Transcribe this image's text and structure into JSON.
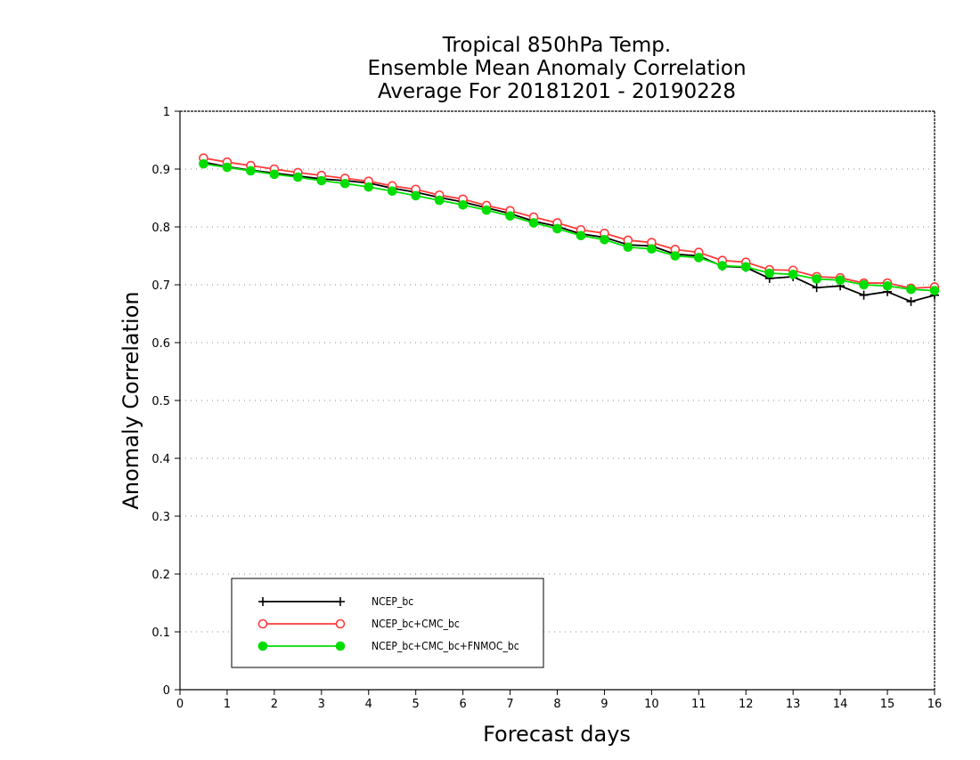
{
  "chart_data": {
    "type": "line",
    "title": [
      "Tropical 850hPa Temp.",
      "Ensemble Mean Anomaly Correlation",
      "Average For 20181201 - 20190228"
    ],
    "xlabel": "Forecast days",
    "ylabel": "Anomaly Correlation",
    "xlim": [
      0,
      16
    ],
    "ylim": [
      0,
      1
    ],
    "xticks": [
      0,
      1,
      2,
      3,
      4,
      5,
      6,
      7,
      8,
      9,
      10,
      11,
      12,
      13,
      14,
      15,
      16
    ],
    "yticks": [
      0,
      0.1,
      0.2,
      0.3,
      0.4,
      0.5,
      0.6,
      0.7,
      0.8,
      0.9,
      1
    ],
    "xtick_labels": [
      "0",
      "1",
      "2",
      "3",
      "4",
      "5",
      "6",
      "7",
      "8",
      "9",
      "10",
      "11",
      "12",
      "13",
      "14",
      "15",
      "16"
    ],
    "ytick_labels": [
      "0",
      "0.1",
      "0.2",
      "0.3",
      "0.4",
      "0.5",
      "0.6",
      "0.7",
      "0.8",
      "0.9",
      "1"
    ],
    "grid": "horizontal-dotted",
    "legend_position": "bottom-left",
    "x": [
      0.5,
      1,
      1.5,
      2,
      2.5,
      3,
      3.5,
      4,
      4.5,
      5,
      5.5,
      6,
      6.5,
      7,
      7.5,
      8,
      8.5,
      9,
      9.5,
      10,
      10.5,
      11,
      11.5,
      12,
      12.5,
      13,
      13.5,
      14,
      14.5,
      15,
      15.5,
      16
    ],
    "series": [
      {
        "name": "NCEP_bc",
        "color": "#000000",
        "marker": "plus",
        "values": [
          0.912,
          0.904,
          0.898,
          0.893,
          0.888,
          0.883,
          0.88,
          0.876,
          0.867,
          0.86,
          0.851,
          0.843,
          0.833,
          0.823,
          0.81,
          0.801,
          0.788,
          0.782,
          0.769,
          0.767,
          0.753,
          0.75,
          0.732,
          0.73,
          0.711,
          0.714,
          0.695,
          0.698,
          0.682,
          0.688,
          0.671,
          0.682
        ]
      },
      {
        "name": "NCEP_bc+CMC_bc",
        "color": "#ff3a3a",
        "marker": "open-circle",
        "values": [
          0.919,
          0.912,
          0.906,
          0.9,
          0.894,
          0.889,
          0.884,
          0.879,
          0.871,
          0.865,
          0.855,
          0.848,
          0.837,
          0.828,
          0.817,
          0.807,
          0.795,
          0.789,
          0.777,
          0.773,
          0.761,
          0.756,
          0.742,
          0.739,
          0.726,
          0.725,
          0.714,
          0.712,
          0.703,
          0.703,
          0.694,
          0.696
        ]
      },
      {
        "name": "NCEP_bc+CMC_bc+FNMOC_bc",
        "color": "#00dd00",
        "marker": "filled-circle",
        "values": [
          0.909,
          0.903,
          0.897,
          0.891,
          0.886,
          0.88,
          0.875,
          0.869,
          0.862,
          0.854,
          0.846,
          0.838,
          0.829,
          0.819,
          0.807,
          0.797,
          0.785,
          0.778,
          0.765,
          0.762,
          0.75,
          0.747,
          0.733,
          0.731,
          0.72,
          0.718,
          0.71,
          0.708,
          0.7,
          0.698,
          0.692,
          0.69
        ]
      }
    ]
  }
}
